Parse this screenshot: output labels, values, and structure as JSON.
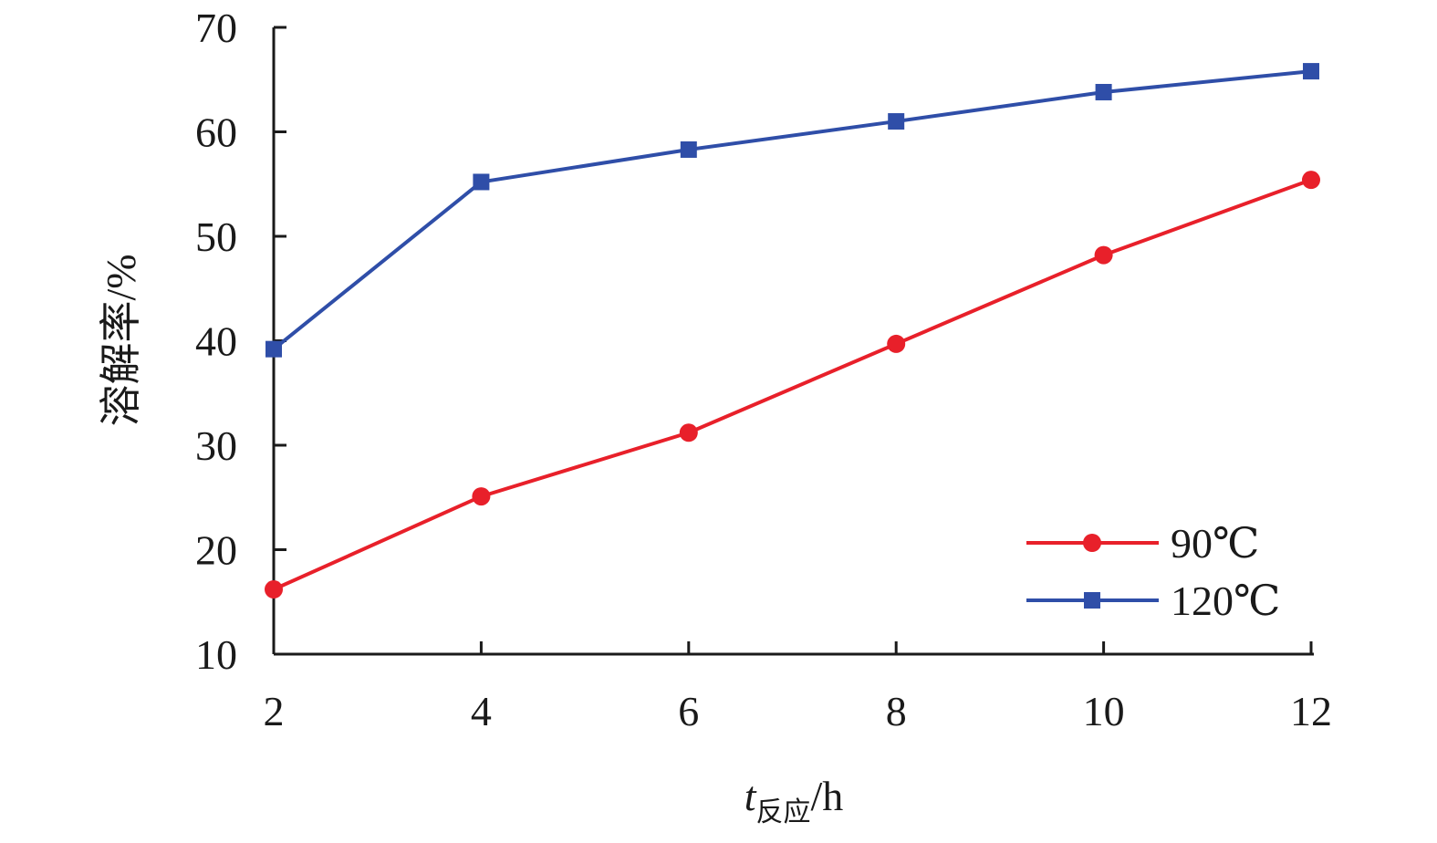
{
  "chart_data": {
    "type": "line",
    "x": [
      2,
      4,
      6,
      8,
      10,
      12
    ],
    "x_ticks": [
      "2",
      "4",
      "6",
      "8",
      "10",
      "12"
    ],
    "y_ticks": [
      "10",
      "20",
      "30",
      "40",
      "50",
      "60",
      "70"
    ],
    "xlim": [
      2,
      12
    ],
    "ylim": [
      10,
      70
    ],
    "ylabel": "溶解率/%",
    "xlabel": {
      "main": "t",
      "subscript": "反应",
      "unit": "/h"
    },
    "grid": false,
    "legend_position": "bottom-right",
    "series": [
      {
        "name": "90℃",
        "color": "#e8202a",
        "marker": "circle",
        "values": [
          16.2,
          25.1,
          31.2,
          39.7,
          48.2,
          55.4
        ]
      },
      {
        "name": "120℃",
        "color": "#2f4ea8",
        "marker": "square",
        "values": [
          39.2,
          55.2,
          58.3,
          61.0,
          63.8,
          65.8
        ]
      }
    ]
  }
}
